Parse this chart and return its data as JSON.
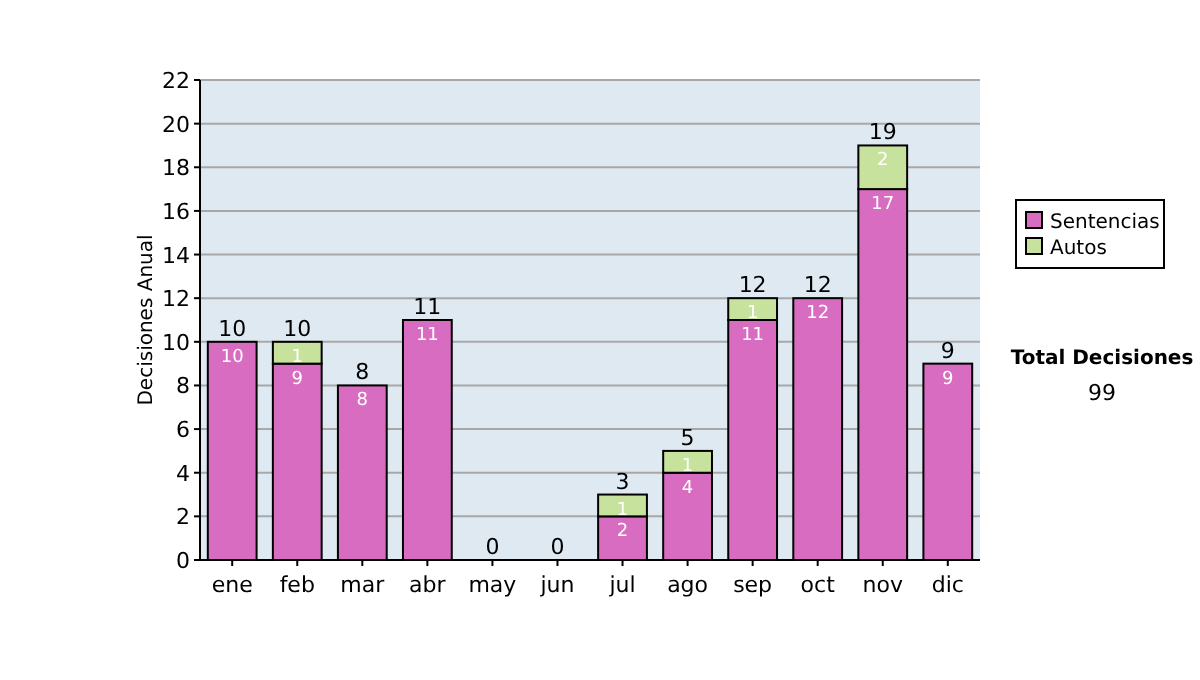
{
  "chart_data": {
    "type": "bar",
    "stacked": true,
    "ylabel": "Decisiones Anual",
    "categories": [
      "ene",
      "feb",
      "mar",
      "abr",
      "may",
      "jun",
      "jul",
      "ago",
      "sep",
      "oct",
      "nov",
      "dic"
    ],
    "series": [
      {
        "name": "Sentencias",
        "color": "#d86cc0",
        "values": [
          10,
          9,
          8,
          11,
          0,
          0,
          2,
          4,
          11,
          12,
          17,
          9
        ],
        "value_labels": [
          "10",
          "9",
          "8",
          "11",
          null,
          null,
          "2",
          "4",
          "11",
          "12",
          "17",
          "9"
        ]
      },
      {
        "name": "Autos",
        "color": "#c6e29c",
        "values": [
          0,
          1,
          0,
          0,
          0,
          0,
          1,
          1,
          1,
          0,
          2,
          0
        ],
        "value_labels": [
          null,
          "1",
          null,
          null,
          null,
          null,
          "1",
          "1",
          "1",
          null,
          "2",
          null
        ]
      }
    ],
    "totals": [
      "10",
      "10",
      "8",
      "11",
      "0",
      "0",
      "3",
      "5",
      "12",
      "12",
      "19",
      "9"
    ],
    "ylim": [
      0,
      22
    ],
    "yticks": [
      0,
      2,
      4,
      6,
      8,
      10,
      12,
      14,
      16,
      18,
      20,
      22
    ],
    "grid": "y",
    "legend": "right",
    "annotations": [
      "Total Decisiones",
      "99"
    ]
  }
}
